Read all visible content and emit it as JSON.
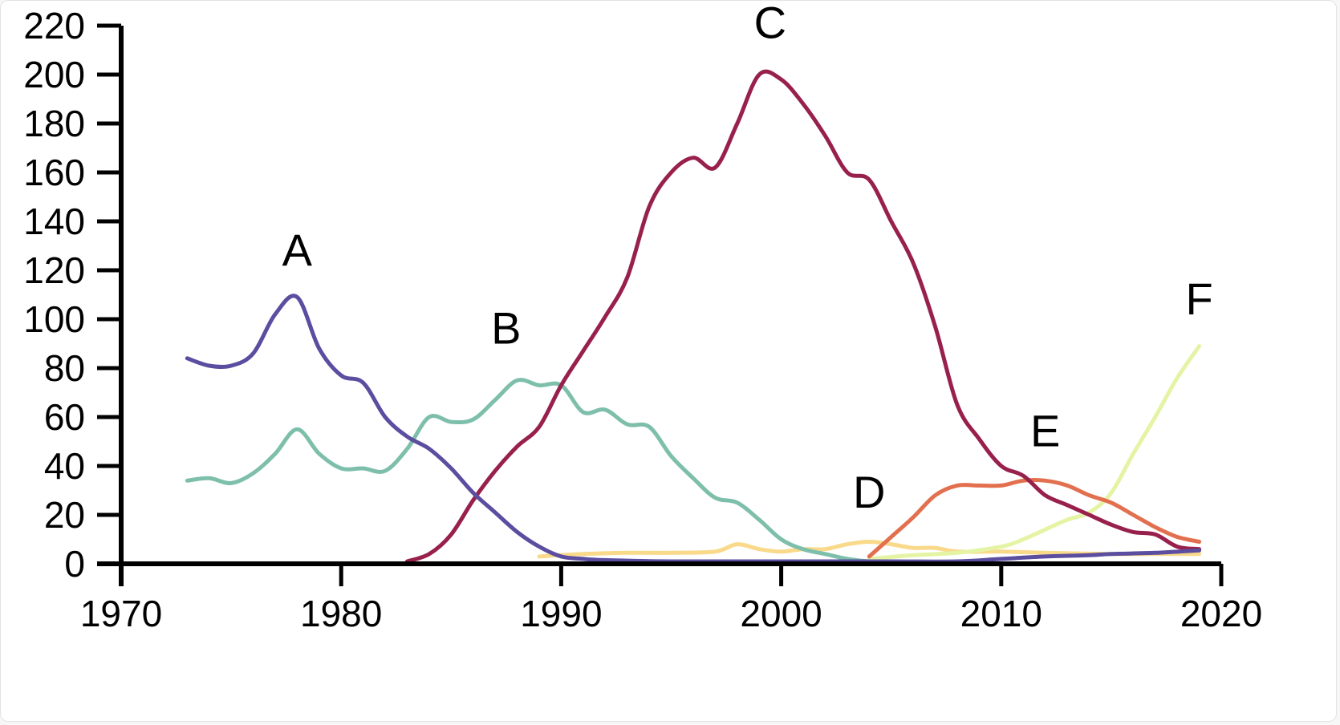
{
  "chart_data": {
    "type": "line",
    "title": "",
    "xlabel": "",
    "ylabel": "",
    "xlim": [
      1970,
      2020
    ],
    "ylim": [
      0,
      220
    ],
    "x_ticks": [
      1970,
      1980,
      1990,
      2000,
      2010,
      2020
    ],
    "y_ticks": [
      0,
      20,
      40,
      60,
      80,
      100,
      120,
      140,
      160,
      180,
      200,
      220
    ],
    "grid": false,
    "legend": "none",
    "series": [
      {
        "label": "A",
        "color": "#5b4ea0",
        "label_x": 1978,
        "label_y": 122,
        "points": [
          [
            1973,
            84
          ],
          [
            1974,
            81
          ],
          [
            1975,
            81
          ],
          [
            1976,
            86
          ],
          [
            1977,
            102
          ],
          [
            1978,
            109
          ],
          [
            1979,
            88
          ],
          [
            1980,
            77
          ],
          [
            1981,
            74
          ],
          [
            1982,
            60
          ],
          [
            1983,
            52
          ],
          [
            1984,
            47
          ],
          [
            1985,
            39
          ],
          [
            1986,
            29
          ],
          [
            1987,
            21
          ],
          [
            1988,
            13
          ],
          [
            1989,
            7
          ],
          [
            1990,
            3
          ],
          [
            1991,
            2
          ],
          [
            1992,
            1.5
          ],
          [
            1995,
            1
          ],
          [
            2000,
            1
          ],
          [
            2005,
            1
          ],
          [
            2008,
            1
          ],
          [
            2010,
            2
          ],
          [
            2012,
            3
          ],
          [
            2014,
            3.5
          ],
          [
            2015,
            4
          ],
          [
            2017,
            4.5
          ],
          [
            2019,
            5.5
          ]
        ]
      },
      {
        "label": "B",
        "color": "#7dbfab",
        "label_x": 1987.5,
        "label_y": 90,
        "points": [
          [
            1973,
            34
          ],
          [
            1974,
            35
          ],
          [
            1975,
            33
          ],
          [
            1976,
            37
          ],
          [
            1977,
            45
          ],
          [
            1978,
            55
          ],
          [
            1979,
            45
          ],
          [
            1980,
            39
          ],
          [
            1981,
            39
          ],
          [
            1982,
            38
          ],
          [
            1983,
            47
          ],
          [
            1984,
            60
          ],
          [
            1985,
            58
          ],
          [
            1986,
            59
          ],
          [
            1987,
            67
          ],
          [
            1988,
            75
          ],
          [
            1989,
            73
          ],
          [
            1990,
            73
          ],
          [
            1991,
            62
          ],
          [
            1992,
            63
          ],
          [
            1993,
            57
          ],
          [
            1994,
            56
          ],
          [
            1995,
            44
          ],
          [
            1996,
            35
          ],
          [
            1997,
            27
          ],
          [
            1998,
            25
          ],
          [
            1999,
            18
          ],
          [
            2000,
            10
          ],
          [
            2001,
            6
          ],
          [
            2002,
            4
          ],
          [
            2003,
            2
          ],
          [
            2004,
            1
          ],
          [
            2006,
            0.5
          ],
          [
            2008,
            0.5
          ]
        ]
      },
      {
        "label": "C",
        "color": "#98204c",
        "label_x": 1999.5,
        "label_y": 215,
        "points": [
          [
            1983,
            1
          ],
          [
            1984,
            4
          ],
          [
            1985,
            12
          ],
          [
            1986,
            26
          ],
          [
            1987,
            38
          ],
          [
            1988,
            48
          ],
          [
            1989,
            56
          ],
          [
            1990,
            73
          ],
          [
            1991,
            87
          ],
          [
            1992,
            101
          ],
          [
            1993,
            117
          ],
          [
            1994,
            146
          ],
          [
            1995,
            160
          ],
          [
            1996,
            166
          ],
          [
            1997,
            162
          ],
          [
            1998,
            180
          ],
          [
            1999,
            200
          ],
          [
            2000,
            198
          ],
          [
            2001,
            188
          ],
          [
            2002,
            175
          ],
          [
            2003,
            160
          ],
          [
            2004,
            157
          ],
          [
            2005,
            140
          ],
          [
            2006,
            123
          ],
          [
            2007,
            97
          ],
          [
            2008,
            65
          ],
          [
            2009,
            51
          ],
          [
            2010,
            40
          ],
          [
            2011,
            36
          ],
          [
            2012,
            28
          ],
          [
            2013,
            24
          ],
          [
            2014,
            20
          ],
          [
            2015,
            16
          ],
          [
            2016,
            13
          ],
          [
            2017,
            12
          ],
          [
            2018,
            7
          ],
          [
            2019,
            6
          ]
        ]
      },
      {
        "label": "D",
        "color": "#f9d98a",
        "label_x": 2004,
        "label_y": 23,
        "points": [
          [
            1989,
            3
          ],
          [
            1991,
            4
          ],
          [
            1993,
            4.5
          ],
          [
            1995,
            4.5
          ],
          [
            1997,
            5
          ],
          [
            1998,
            8
          ],
          [
            1999,
            6
          ],
          [
            2000,
            5
          ],
          [
            2001,
            6
          ],
          [
            2002,
            6
          ],
          [
            2003,
            8
          ],
          [
            2004,
            9
          ],
          [
            2005,
            8
          ],
          [
            2006,
            6.5
          ],
          [
            2007,
            6.5
          ],
          [
            2008,
            5
          ],
          [
            2010,
            5
          ],
          [
            2012,
            4.5
          ],
          [
            2015,
            4
          ],
          [
            2017,
            4
          ],
          [
            2019,
            4
          ]
        ]
      },
      {
        "label": "E",
        "color": "#e2704f",
        "label_x": 2012,
        "label_y": 48,
        "points": [
          [
            2004,
            3
          ],
          [
            2005,
            11
          ],
          [
            2006,
            19
          ],
          [
            2007,
            28
          ],
          [
            2008,
            32
          ],
          [
            2009,
            32
          ],
          [
            2010,
            32
          ],
          [
            2011,
            34
          ],
          [
            2012,
            34
          ],
          [
            2013,
            32
          ],
          [
            2014,
            28
          ],
          [
            2015,
            25
          ],
          [
            2016,
            20
          ],
          [
            2017,
            15
          ],
          [
            2018,
            11
          ],
          [
            2019,
            9
          ]
        ]
      },
      {
        "label": "F",
        "color": "#e4f4a4",
        "label_x": 2019,
        "label_y": 102,
        "points": [
          [
            2004,
            2
          ],
          [
            2006,
            3.5
          ],
          [
            2008,
            4.5
          ],
          [
            2010,
            7
          ],
          [
            2011,
            10
          ],
          [
            2012,
            14
          ],
          [
            2013,
            18
          ],
          [
            2014,
            21
          ],
          [
            2015,
            29
          ],
          [
            2016,
            45
          ],
          [
            2017,
            60
          ],
          [
            2018,
            76
          ],
          [
            2019,
            89
          ]
        ]
      }
    ]
  }
}
